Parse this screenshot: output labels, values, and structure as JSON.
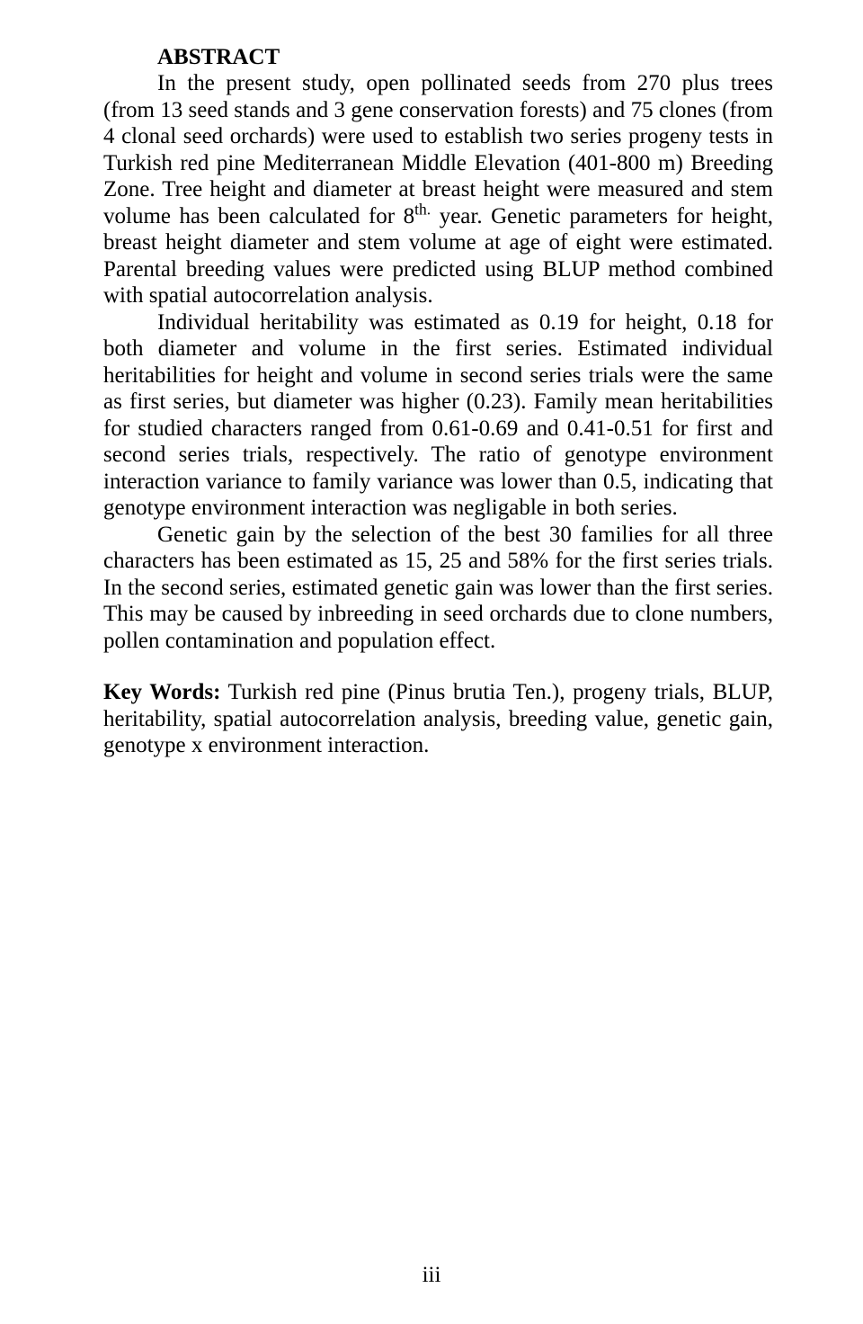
{
  "title": "ABSTRACT",
  "para1_a": "In the present study, open pollinated seeds from 270 plus trees (from 13 seed stands and 3 gene conservation forests) and 75 clones (from 4 clonal seed orchards) were used to establish two series progeny tests in Turkish red pine Mediterranean Middle Elevation (401-800 m) Breeding Zone. Tree height and diameter at breast height were measured and stem volume has been calculated for 8",
  "para1_sup": "th.",
  "para1_b": " year. Genetic parameters for height, breast height diameter and stem volume at age of eight were estimated. Parental breeding values were predicted using BLUP method combined with spatial autocorrelation analysis.",
  "para2": "Individual heritability was estimated as 0.19 for height, 0.18 for both diameter and volume in the first series. Estimated individual heritabilities for height and volume in second series trials were the same as first series, but diameter was higher (0.23). Family mean heritabilities for studied characters ranged from 0.61-0.69 and 0.41-0.51 for first and second series trials, respectively. The ratio of genotype environment interaction variance to family variance was lower than 0.5, indicating that genotype environment interaction was negligable in both series.",
  "para3": "Genetic gain by the selection of the best 30 families for all three characters has been estimated as 15, 25 and 58% for the first series trials. In the second series, estimated genetic gain was lower than the first series. This may be caused by inbreeding in seed orchards due to clone numbers, pollen contamination and population effect.",
  "keywords_label": "Key Words:",
  "keywords_text": " Turkish red pine (Pinus brutia Ten.), progeny trials, BLUP, heritability, spatial autocorrelation analysis, breeding value,  genetic gain, genotype x environment interaction.",
  "page_number": "iii"
}
